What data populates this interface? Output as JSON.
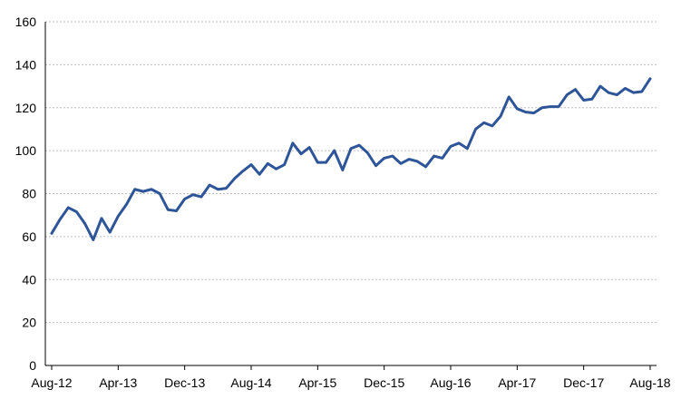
{
  "chart_data": {
    "type": "line",
    "title": "",
    "xlabel": "",
    "ylabel": "",
    "ylim": [
      0,
      160
    ],
    "y_ticks": [
      "0",
      "20",
      "40",
      "60",
      "80",
      "100",
      "120",
      "140",
      "160"
    ],
    "x_tick_labels": [
      "Aug-12",
      "Apr-13",
      "Dec-13",
      "Aug-14",
      "Apr-15",
      "Dec-15",
      "Aug-16",
      "Apr-17",
      "Dec-17",
      "Aug-18"
    ],
    "x_tick_every_n_months": 8,
    "grid": "horizontal dashed",
    "legend": "none",
    "line_color": "#2e5597",
    "x": [
      "Aug-12",
      "Sep-12",
      "Oct-12",
      "Nov-12",
      "Dec-12",
      "Jan-13",
      "Feb-13",
      "Mar-13",
      "Apr-13",
      "May-13",
      "Jun-13",
      "Jul-13",
      "Aug-13",
      "Sep-13",
      "Oct-13",
      "Nov-13",
      "Dec-13",
      "Jan-14",
      "Feb-14",
      "Mar-14",
      "Apr-14",
      "May-14",
      "Jun-14",
      "Jul-14",
      "Aug-14",
      "Sep-14",
      "Oct-14",
      "Nov-14",
      "Dec-14",
      "Jan-15",
      "Feb-15",
      "Mar-15",
      "Apr-15",
      "May-15",
      "Jun-15",
      "Jul-15",
      "Aug-15",
      "Sep-15",
      "Oct-15",
      "Nov-15",
      "Dec-15",
      "Jan-16",
      "Feb-16",
      "Mar-16",
      "Apr-16",
      "May-16",
      "Jun-16",
      "Jul-16",
      "Aug-16",
      "Sep-16",
      "Oct-16",
      "Nov-16",
      "Dec-16",
      "Jan-17",
      "Feb-17",
      "Mar-17",
      "Apr-17",
      "May-17",
      "Jun-17",
      "Jul-17",
      "Aug-17",
      "Sep-17",
      "Oct-17",
      "Nov-17",
      "Dec-17",
      "Jan-18",
      "Feb-18",
      "Mar-18",
      "Apr-18",
      "May-18",
      "Jun-18",
      "Jul-18",
      "Aug-18"
    ],
    "series": [
      {
        "values": [
          61.5,
          68,
          73.5,
          71.5,
          66,
          58.5,
          68.5,
          62,
          69.5,
          75,
          82,
          81,
          82,
          80,
          72.5,
          72,
          77.5,
          79.5,
          78.5,
          84,
          82,
          82.5,
          87,
          90.5,
          93.5,
          89,
          94,
          91.5,
          93.5,
          103.5,
          98.5,
          101.5,
          94.5,
          94.5,
          100,
          91,
          101,
          102.5,
          99,
          93,
          96.5,
          97.5,
          94,
          96,
          95,
          92.5,
          97.5,
          96.5,
          102,
          103.5,
          101,
          110,
          113,
          111.5,
          116,
          125,
          119.5,
          118,
          117.5,
          120,
          120.5,
          120.5,
          126,
          128.5,
          123.5,
          124,
          130,
          127,
          126,
          129,
          127,
          127.5,
          133.5
        ]
      }
    ]
  }
}
